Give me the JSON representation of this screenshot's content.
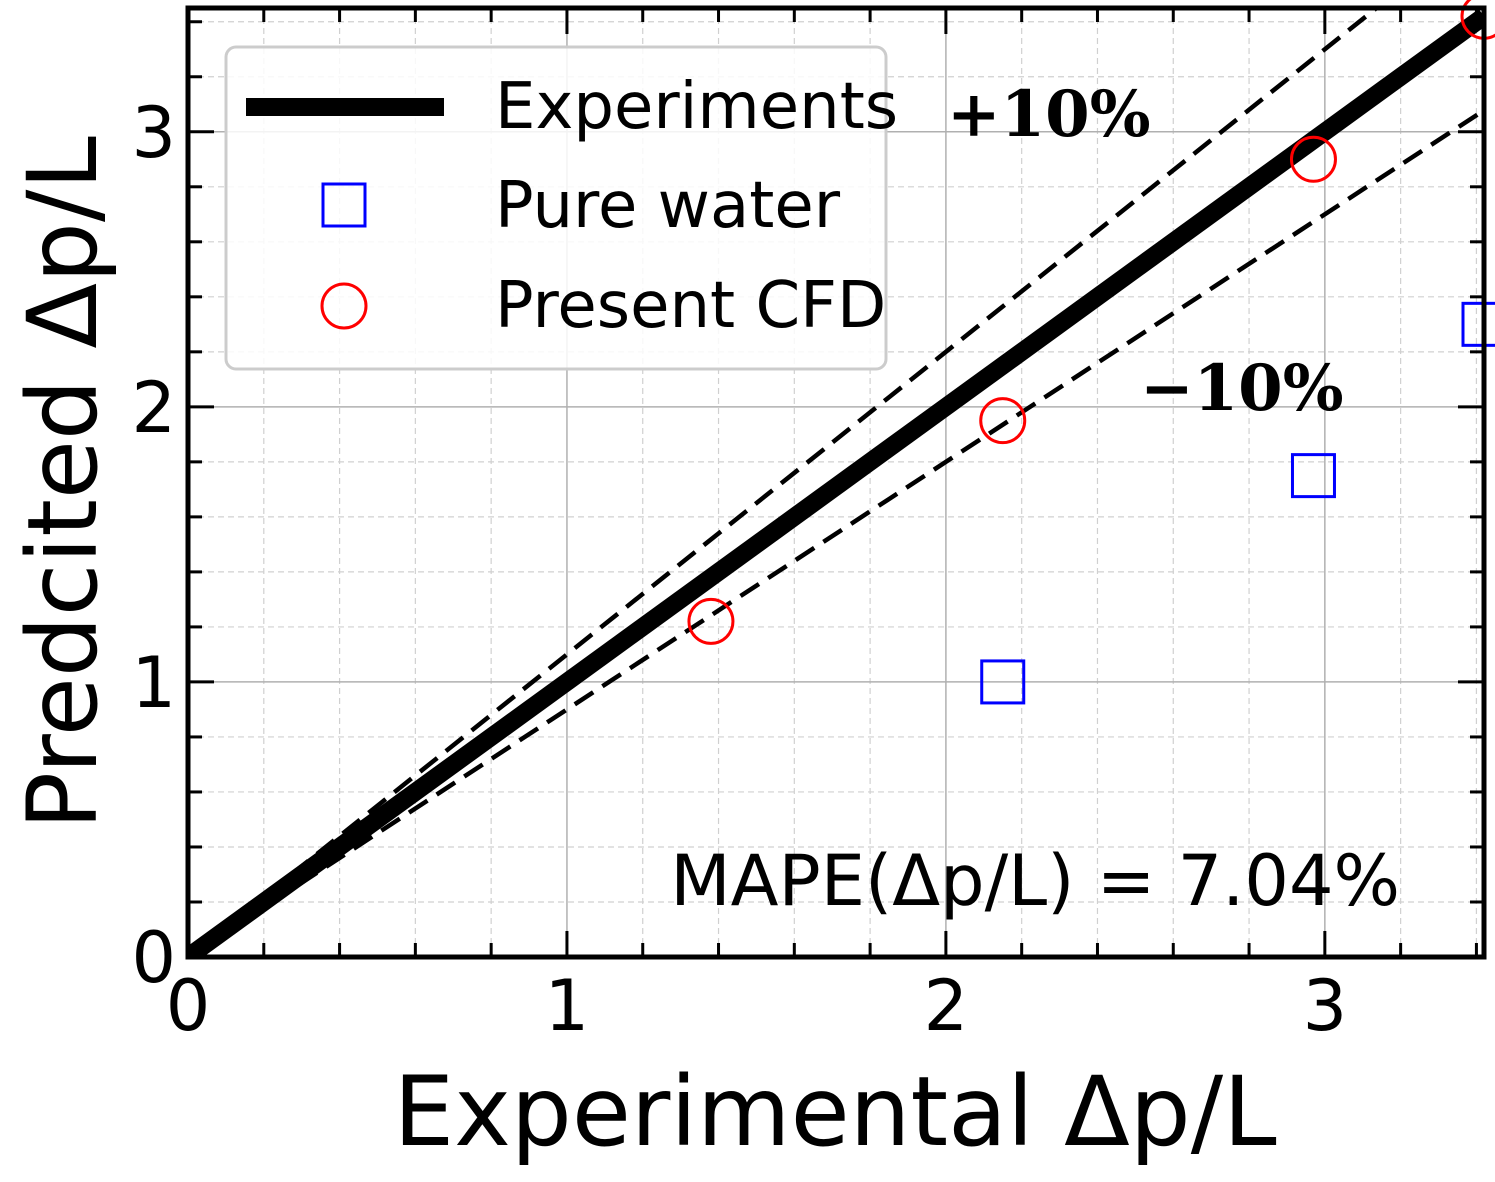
{
  "chart_data": {
    "type": "scatter",
    "xlabel": "Experimental Δp/L",
    "ylabel": "Predcited Δp/L",
    "xlim": [
      0,
      3.42
    ],
    "ylim": [
      0,
      3.45
    ],
    "x_ticks": [
      "0",
      "1",
      "2",
      "3"
    ],
    "y_ticks": [
      "0",
      "1",
      "2",
      "3"
    ],
    "grid": true,
    "legend_position": "top-left",
    "legend": {
      "experiments": "Experiments",
      "pure_water": "Pure water",
      "present_cfd": "Present CFD"
    },
    "series": [
      {
        "name": "Experiments",
        "kind": "line",
        "color": "#000000",
        "x": [
          0,
          3.42
        ],
        "y": [
          0,
          3.42
        ]
      },
      {
        "name": "Pure water",
        "kind": "square",
        "color": "#0000ff",
        "x": [
          2.15,
          2.97,
          3.42
        ],
        "y": [
          1.0,
          1.75,
          2.3
        ]
      },
      {
        "name": "Present CFD",
        "kind": "circle",
        "color": "#ff0000",
        "x": [
          1.38,
          2.15,
          2.97,
          3.42
        ],
        "y": [
          1.22,
          1.95,
          2.9,
          3.42
        ]
      }
    ],
    "bands": [
      {
        "label": "+10%",
        "slope": 1.1
      },
      {
        "label": "−10%",
        "slope": 0.9
      }
    ],
    "annotation": "MAPE(Δp/L) = 7.04%"
  }
}
